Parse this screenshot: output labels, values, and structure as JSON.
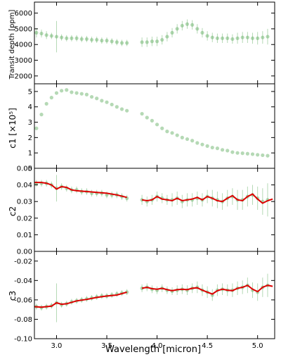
{
  "chart_data": [
    {
      "type": "scatter",
      "panel": "transit",
      "ylabel": "Transit depth [ppm]",
      "xlim": [
        2.78,
        5.17
      ],
      "ylim": [
        1500,
        6700
      ],
      "yticks": [
        2000,
        3000,
        4000,
        5000,
        6000
      ],
      "yticklabels": [
        "2000",
        "3000",
        "4000",
        "5000",
        "6000"
      ],
      "point_color": "#5aaa5a",
      "series": [
        {
          "x": [
            2.8,
            2.85,
            2.9,
            2.95,
            3.0,
            3.05,
            3.1,
            3.15,
            3.2,
            3.25,
            3.3,
            3.35,
            3.4,
            3.45,
            3.5,
            3.55,
            3.6,
            3.65,
            3.7,
            3.85,
            3.9,
            3.95,
            4.0,
            4.05,
            4.1,
            4.15,
            4.2,
            4.25,
            4.3,
            4.35,
            4.4,
            4.45,
            4.5,
            4.55,
            4.6,
            4.65,
            4.7,
            4.75,
            4.8,
            4.85,
            4.9,
            4.95,
            5.0,
            5.05,
            5.1
          ],
          "y": [
            4750,
            4700,
            4600,
            4550,
            4500,
            4450,
            4400,
            4400,
            4400,
            4350,
            4350,
            4300,
            4300,
            4250,
            4250,
            4200,
            4150,
            4100,
            4100,
            4150,
            4150,
            4200,
            4200,
            4300,
            4500,
            4750,
            5000,
            5200,
            5300,
            5250,
            5000,
            4750,
            4550,
            4450,
            4400,
            4400,
            4400,
            4350,
            4400,
            4450,
            4450,
            4400,
            4400,
            4450,
            4500
          ],
          "err": [
            300,
            250,
            250,
            200,
            1000,
            200,
            200,
            200,
            200,
            200,
            200,
            200,
            200,
            200,
            200,
            200,
            200,
            200,
            200,
            300,
            300,
            300,
            300,
            300,
            300,
            300,
            300,
            300,
            300,
            300,
            300,
            300,
            300,
            300,
            300,
            300,
            300,
            300,
            350,
            350,
            350,
            350,
            400,
            400,
            500
          ]
        }
      ]
    },
    {
      "type": "scatter",
      "panel": "c1",
      "ylabel": "c1 [×10⁵]",
      "xlim": [
        2.78,
        5.17
      ],
      "ylim": [
        0,
        5.5
      ],
      "yticks": [
        0,
        1,
        2,
        3,
        4,
        5
      ],
      "yticklabels": [
        "0",
        "1",
        "2",
        "3",
        "4",
        "5"
      ],
      "point_color": "#5aaa5a",
      "series": [
        {
          "x": [
            2.8,
            2.85,
            2.9,
            2.95,
            3.0,
            3.05,
            3.1,
            3.15,
            3.2,
            3.25,
            3.3,
            3.35,
            3.4,
            3.45,
            3.5,
            3.55,
            3.6,
            3.65,
            3.7,
            3.85,
            3.9,
            3.95,
            4.0,
            4.05,
            4.1,
            4.15,
            4.2,
            4.25,
            4.3,
            4.35,
            4.4,
            4.45,
            4.5,
            4.55,
            4.6,
            4.65,
            4.7,
            4.75,
            4.8,
            4.85,
            4.9,
            4.95,
            5.0,
            5.05,
            5.1
          ],
          "y": [
            2.6,
            3.5,
            4.2,
            4.6,
            4.9,
            5.05,
            5.1,
            4.95,
            4.9,
            4.85,
            4.8,
            4.65,
            4.55,
            4.4,
            4.3,
            4.15,
            4.0,
            3.85,
            3.75,
            3.55,
            3.3,
            3.1,
            2.85,
            2.6,
            2.4,
            2.3,
            2.15,
            2.0,
            1.9,
            1.8,
            1.65,
            1.55,
            1.45,
            1.35,
            1.3,
            1.2,
            1.15,
            1.05,
            1.0,
            0.98,
            0.95,
            0.92,
            0.88,
            0.85,
            0.82
          ]
        }
      ]
    },
    {
      "type": "scatter",
      "panel": "c2",
      "ylabel": "c2",
      "xlim": [
        2.78,
        5.17
      ],
      "ylim": [
        0.0,
        0.05
      ],
      "yticks": [
        0.0,
        0.01,
        0.02,
        0.03,
        0.04,
        0.05
      ],
      "yticklabels": [
        "0.00",
        "0.01",
        "0.02",
        "0.03",
        "0.04",
        "0.05"
      ],
      "point_color": "#5aaa5a",
      "line_color": "#dd0000",
      "series": [
        {
          "x": [
            2.8,
            2.85,
            2.9,
            2.95,
            3.0,
            3.05,
            3.1,
            3.15,
            3.2,
            3.25,
            3.3,
            3.35,
            3.4,
            3.45,
            3.5,
            3.55,
            3.6,
            3.65,
            3.7,
            3.85,
            3.9,
            3.95,
            4.0,
            4.05,
            4.1,
            4.15,
            4.2,
            4.25,
            4.3,
            4.35,
            4.4,
            4.45,
            4.5,
            4.55,
            4.6,
            4.65,
            4.7,
            4.75,
            4.8,
            4.85,
            4.9,
            4.95,
            5.0,
            5.05,
            5.1
          ],
          "y": [
            0.041,
            0.041,
            0.041,
            0.04,
            0.038,
            0.039,
            0.038,
            0.037,
            0.037,
            0.036,
            0.036,
            0.035,
            0.035,
            0.035,
            0.034,
            0.034,
            0.034,
            0.033,
            0.032,
            0.031,
            0.03,
            0.031,
            0.033,
            0.032,
            0.031,
            0.031,
            0.032,
            0.03,
            0.031,
            0.031,
            0.032,
            0.031,
            0.033,
            0.032,
            0.031,
            0.03,
            0.032,
            0.033,
            0.031,
            0.031,
            0.033,
            0.034,
            0.032,
            0.03,
            0.031
          ],
          "err": [
            0.002,
            0.002,
            0.002,
            0.002,
            0.008,
            0.002,
            0.002,
            0.002,
            0.002,
            0.002,
            0.002,
            0.002,
            0.002,
            0.002,
            0.002,
            0.002,
            0.002,
            0.002,
            0.002,
            0.003,
            0.003,
            0.003,
            0.003,
            0.003,
            0.003,
            0.004,
            0.004,
            0.004,
            0.004,
            0.004,
            0.004,
            0.004,
            0.004,
            0.005,
            0.005,
            0.005,
            0.005,
            0.005,
            0.006,
            0.006,
            0.006,
            0.006,
            0.007,
            0.008,
            0.01
          ]
        }
      ],
      "fit": {
        "x": [
          2.78,
          2.85,
          2.9,
          2.95,
          3.0,
          3.05,
          3.1,
          3.15,
          3.2,
          3.3,
          3.4,
          3.5,
          3.6,
          3.7,
          3.85,
          3.9,
          3.95,
          4.0,
          4.05,
          4.1,
          4.15,
          4.2,
          4.25,
          4.3,
          4.35,
          4.4,
          4.45,
          4.5,
          4.55,
          4.6,
          4.65,
          4.7,
          4.75,
          4.8,
          4.85,
          4.9,
          4.95,
          5.0,
          5.05,
          5.1,
          5.15
        ],
        "y": [
          0.0415,
          0.0415,
          0.041,
          0.04,
          0.0375,
          0.039,
          0.0385,
          0.037,
          0.0365,
          0.036,
          0.0355,
          0.035,
          0.034,
          0.0325,
          0.031,
          0.0305,
          0.031,
          0.033,
          0.0315,
          0.031,
          0.0305,
          0.032,
          0.0305,
          0.031,
          0.0315,
          0.0325,
          0.031,
          0.033,
          0.032,
          0.0305,
          0.03,
          0.032,
          0.0335,
          0.031,
          0.0305,
          0.033,
          0.0345,
          0.0315,
          0.029,
          0.0305,
          0.0315
        ]
      }
    },
    {
      "type": "scatter",
      "panel": "c3",
      "ylabel": "c3",
      "xlabel": "Wavelength [micron]",
      "xlim": [
        2.78,
        5.17
      ],
      "ylim": [
        -0.1,
        -0.01
      ],
      "yticks": [
        -0.1,
        -0.08,
        -0.06,
        -0.04,
        -0.02
      ],
      "yticklabels": [
        "-0.10",
        "-0.08",
        "-0.06",
        "-0.04",
        "-0.02"
      ],
      "xticks": [
        3.0,
        3.5,
        4.0,
        4.5,
        5.0
      ],
      "xticklabels": [
        "3.0",
        "3.5",
        "4.0",
        "4.5",
        "5.0"
      ],
      "point_color": "#5aaa5a",
      "line_color": "#dd0000",
      "series": [
        {
          "x": [
            2.8,
            2.85,
            2.9,
            2.95,
            3.0,
            3.05,
            3.1,
            3.15,
            3.2,
            3.25,
            3.3,
            3.35,
            3.4,
            3.45,
            3.5,
            3.55,
            3.6,
            3.65,
            3.7,
            3.85,
            3.9,
            3.95,
            4.0,
            4.05,
            4.1,
            4.15,
            4.2,
            4.25,
            4.3,
            4.35,
            4.4,
            4.45,
            4.5,
            4.55,
            4.6,
            4.65,
            4.7,
            4.75,
            4.8,
            4.85,
            4.9,
            4.95,
            5.0,
            5.05,
            5.1
          ],
          "y": [
            -0.067,
            -0.068,
            -0.067,
            -0.066,
            -0.063,
            -0.065,
            -0.064,
            -0.062,
            -0.061,
            -0.06,
            -0.059,
            -0.058,
            -0.057,
            -0.056,
            -0.056,
            -0.055,
            -0.054,
            -0.053,
            -0.052,
            -0.048,
            -0.047,
            -0.049,
            -0.05,
            -0.048,
            -0.05,
            -0.051,
            -0.05,
            -0.049,
            -0.05,
            -0.048,
            -0.047,
            -0.05,
            -0.052,
            -0.055,
            -0.05,
            -0.049,
            -0.05,
            -0.05,
            -0.048,
            -0.047,
            -0.045,
            -0.05,
            -0.052,
            -0.047,
            -0.045
          ],
          "err": [
            0.003,
            0.003,
            0.003,
            0.003,
            0.02,
            0.003,
            0.003,
            0.003,
            0.003,
            0.003,
            0.003,
            0.003,
            0.003,
            0.003,
            0.003,
            0.003,
            0.003,
            0.003,
            0.003,
            0.004,
            0.004,
            0.004,
            0.004,
            0.004,
            0.004,
            0.004,
            0.005,
            0.005,
            0.005,
            0.005,
            0.006,
            0.006,
            0.006,
            0.006,
            0.006,
            0.006,
            0.006,
            0.007,
            0.007,
            0.007,
            0.008,
            0.008,
            0.009,
            0.01,
            0.012
          ]
        }
      ],
      "fit": {
        "x": [
          2.78,
          2.85,
          2.9,
          2.95,
          3.0,
          3.05,
          3.1,
          3.2,
          3.3,
          3.4,
          3.5,
          3.6,
          3.7,
          3.85,
          3.9,
          3.95,
          4.0,
          4.05,
          4.1,
          4.15,
          4.2,
          4.25,
          4.3,
          4.35,
          4.4,
          4.45,
          4.5,
          4.55,
          4.6,
          4.65,
          4.7,
          4.75,
          4.8,
          4.85,
          4.9,
          4.95,
          5.0,
          5.05,
          5.1,
          5.15
        ],
        "y": [
          -0.067,
          -0.0675,
          -0.067,
          -0.0665,
          -0.063,
          -0.0645,
          -0.064,
          -0.061,
          -0.0595,
          -0.0575,
          -0.056,
          -0.055,
          -0.052,
          -0.048,
          -0.047,
          -0.0485,
          -0.049,
          -0.048,
          -0.0495,
          -0.0505,
          -0.0495,
          -0.049,
          -0.0495,
          -0.048,
          -0.0475,
          -0.05,
          -0.052,
          -0.054,
          -0.0505,
          -0.049,
          -0.05,
          -0.0505,
          -0.048,
          -0.047,
          -0.045,
          -0.049,
          -0.0515,
          -0.047,
          -0.045,
          -0.046
        ]
      }
    }
  ]
}
